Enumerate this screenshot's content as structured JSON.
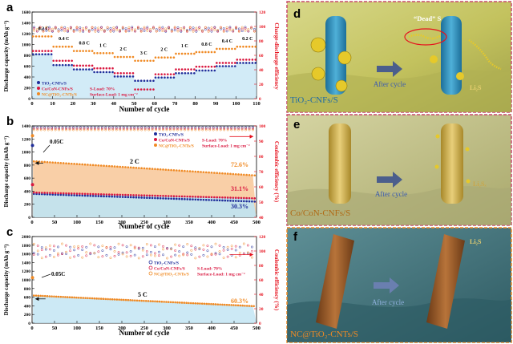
{
  "colors": {
    "tio2": "#1f2d9a",
    "cocon": "#d9173f",
    "nc": "#f08a24",
    "ce": "#e6121e",
    "fill_blue": "#bfe3f3",
    "fill_orange": "#f7c391",
    "panel_d_bg": "#c9c96a",
    "panel_e_bg": "#c7c78a",
    "panel_f_bg": "#4f7e86"
  },
  "chart_data": [
    {
      "id": "a",
      "type": "scatter",
      "title": "a",
      "xlabel": "Number of cycle",
      "ylabel": "Discharge capacity (mAh g⁻¹)",
      "y2label": "Charge-discharge efficiency",
      "xlim": [
        0,
        110
      ],
      "ylim": [
        0,
        1600
      ],
      "y2lim": [
        0,
        120
      ],
      "xticks": [
        0,
        10,
        20,
        30,
        40,
        50,
        60,
        70,
        80,
        90,
        100,
        110
      ],
      "yticks": [
        0,
        200,
        400,
        600,
        800,
        1000,
        1200,
        1400,
        1600
      ],
      "y2ticks": [
        0,
        20,
        40,
        60,
        80,
        100,
        120
      ],
      "legend": [
        "TiO₂-CNFs/S",
        "Co/CoN-CNFs/S",
        "NC@TiO₂-CNTs/S"
      ],
      "legend_notes": [
        "S-Load: 70%",
        "Surface-Load: 1 mg cm⁻²"
      ],
      "rate_labels": [
        "0.2 C",
        "0.4 C",
        "0.8 C",
        "1 C",
        "2 C",
        "3 C",
        "2 C",
        "1 C",
        "0.8 C",
        "0.4 C",
        "0.2 C"
      ],
      "series": [
        {
          "name": "TiO₂-CNFs/S",
          "color_key": "tio2",
          "steps": [
            [
              0,
              10,
              820
            ],
            [
              10,
              20,
              620
            ],
            [
              20,
              30,
              540
            ],
            [
              30,
              40,
              490
            ],
            [
              40,
              50,
              410
            ],
            [
              50,
              60,
              330
            ],
            [
              60,
              70,
              390
            ],
            [
              70,
              80,
              470
            ],
            [
              80,
              90,
              520
            ],
            [
              90,
              100,
              600
            ],
            [
              100,
              110,
              660
            ]
          ]
        },
        {
          "name": "Co/CoN-CNFs/S",
          "color_key": "cocon",
          "steps": [
            [
              0,
              10,
              880
            ],
            [
              10,
              20,
              700
            ],
            [
              20,
              30,
              610
            ],
            [
              30,
              40,
              560
            ],
            [
              40,
              50,
              470
            ],
            [
              50,
              60,
              170
            ],
            [
              60,
              70,
              450
            ],
            [
              70,
              80,
              540
            ],
            [
              80,
              90,
              590
            ],
            [
              90,
              100,
              660
            ],
            [
              100,
              110,
              720
            ]
          ]
        },
        {
          "name": "NC@TiO₂-CNTs/S",
          "color_key": "nc",
          "steps": [
            [
              0,
              10,
              1150
            ],
            [
              10,
              20,
              960
            ],
            [
              20,
              30,
              880
            ],
            [
              30,
              40,
              840
            ],
            [
              40,
              50,
              770
            ],
            [
              50,
              60,
              700
            ],
            [
              60,
              70,
              760
            ],
            [
              70,
              80,
              830
            ],
            [
              80,
              90,
              860
            ],
            [
              90,
              100,
              920
            ],
            [
              100,
              110,
              960
            ]
          ]
        }
      ]
    },
    {
      "id": "b",
      "type": "scatter",
      "title": "b",
      "xlabel": "Number of cycle",
      "ylabel": "Discharge capacity (mAh g⁻¹)",
      "y2label": "Coulombic efficiency (%)",
      "xlim": [
        0,
        500
      ],
      "ylim": [
        0,
        1400
      ],
      "y2lim": [
        40,
        100
      ],
      "xticks": [
        0,
        50,
        100,
        150,
        200,
        250,
        300,
        350,
        400,
        450,
        500
      ],
      "yticks": [
        0,
        200,
        400,
        600,
        800,
        1000,
        1200,
        1400
      ],
      "y2ticks": [
        40,
        50,
        60,
        70,
        80,
        90,
        100
      ],
      "legend": [
        "TiO₂-CNFs/S",
        "Co/CoN-CNFs/S",
        "NC@TiO₂-CNTs/S"
      ],
      "legend_notes": [
        "S-Load: 70%",
        "Surface-Load: 1 mg cm⁻²"
      ],
      "rate_labels": [
        "0.05C",
        "2 C"
      ],
      "retention_labels": [
        "72.6%",
        "31.1%",
        "30.3%"
      ],
      "series": [
        {
          "name": "TiO₂-CNFs/S",
          "color_key": "tio2",
          "initial": 1100,
          "start": 360,
          "end": 240
        },
        {
          "name": "Co/CoN-CNFs/S",
          "color_key": "cocon",
          "initial": 500,
          "start": 380,
          "end": 290
        },
        {
          "name": "NC@TiO₂-CNTs/S",
          "color_key": "nc",
          "initial": 1250,
          "start": 860,
          "end": 640
        }
      ]
    },
    {
      "id": "c",
      "type": "scatter",
      "title": "c",
      "xlabel": "Number of cycle",
      "ylabel": "Discharge capacity (mAh g⁻¹)",
      "y2label": "Coulombic efficiency (%)",
      "xlim": [
        0,
        500
      ],
      "ylim": [
        0,
        2000
      ],
      "y2lim": [
        0,
        120
      ],
      "xticks": [
        0,
        50,
        100,
        150,
        200,
        250,
        300,
        350,
        400,
        450,
        500
      ],
      "yticks": [
        0,
        200,
        400,
        600,
        800,
        1000,
        1200,
        1400,
        1600,
        1800,
        2000
      ],
      "y2ticks": [
        0,
        20,
        40,
        60,
        80,
        100,
        120
      ],
      "legend": [
        "TiO₂-CNFs/S",
        "Co/CoN-CNFs/S",
        "NC@TiO₂-CNTs/S"
      ],
      "legend_notes": [
        "S-Load: 70%",
        "Surface-Load: 1 mg cm⁻²"
      ],
      "rate_labels": [
        "0.05C",
        "5 C"
      ],
      "retention_labels": [
        "60.3%"
      ],
      "series": [
        {
          "name": "NC@TiO₂-CNTs/S",
          "color_key": "nc",
          "initial": 1050,
          "start": 640,
          "end": 390
        }
      ]
    }
  ],
  "panels": {
    "d": {
      "letter": "d",
      "dead_label": "“Dead” S",
      "arrow_label": "After cycle",
      "product_label": "Li₂S",
      "material_label": "TiO₂-CNFs/S"
    },
    "e": {
      "letter": "e",
      "arrow_label": "After cycle",
      "product_label": "Li₂Sₓ",
      "material_label": "Co/CoN-CNFs/S"
    },
    "f": {
      "letter": "f",
      "arrow_label": "After cycle",
      "product_label": "Li₂S",
      "material_label": "NC@TiO₂-CNTs/S"
    }
  }
}
